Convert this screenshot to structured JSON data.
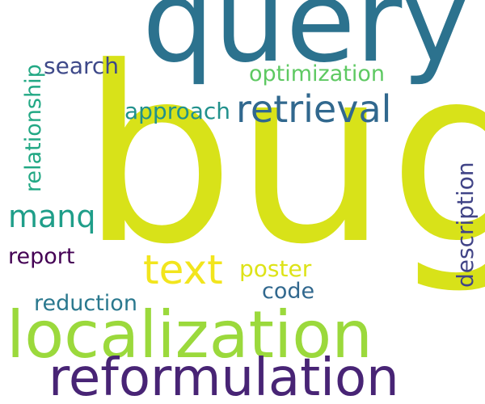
{
  "words": {
    "bug": {
      "text": "bug",
      "color": "#d8e219"
    },
    "query": {
      "text": "query",
      "color": "#2c728e"
    },
    "localization": {
      "text": "localization",
      "color": "#9bd93c"
    },
    "reformulation": {
      "text": "reformulation",
      "color": "#482475"
    },
    "retrieval": {
      "text": "retrieval",
      "color": "#31688e"
    },
    "text": {
      "text": "text",
      "color": "#f2e51d"
    },
    "manq": {
      "text": "manq",
      "color": "#1f9e89"
    },
    "optimization": {
      "text": "optimization",
      "color": "#5ec962"
    },
    "approach": {
      "text": "approach",
      "color": "#21918c"
    },
    "search": {
      "text": "search",
      "color": "#3e4989"
    },
    "relationship": {
      "text": "relationship",
      "color": "#22a884"
    },
    "description": {
      "text": "description",
      "color": "#414487"
    },
    "report": {
      "text": "report",
      "color": "#440154"
    },
    "poster": {
      "text": "poster",
      "color": "#dde318"
    },
    "code": {
      "text": "code",
      "color": "#31688e"
    },
    "reduction": {
      "text": "reduction",
      "color": "#2a788e"
    }
  }
}
